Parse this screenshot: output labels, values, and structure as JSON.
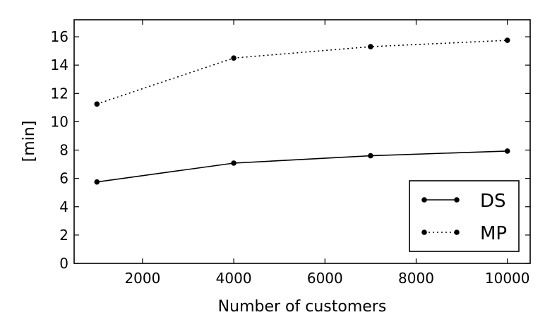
{
  "chart_data": {
    "type": "line",
    "xlabel": "Number of customers",
    "ylabel": "[min]",
    "xlim": [
      500,
      10500
    ],
    "ylim": [
      0,
      17.2
    ],
    "xticks": [
      2000,
      4000,
      6000,
      8000,
      10000
    ],
    "yticks": [
      0,
      2,
      4,
      6,
      8,
      10,
      12,
      14,
      16
    ],
    "grid": false,
    "legend_position": "lower-right",
    "x": [
      1000,
      4000,
      7000,
      10000
    ],
    "series": [
      {
        "name": "DS",
        "values": [
          5.75,
          7.08,
          7.6,
          7.93
        ],
        "line_style": "solid",
        "marker": "dot",
        "color": "#000000"
      },
      {
        "name": "MP",
        "values": [
          11.25,
          14.5,
          15.3,
          15.75
        ],
        "line_style": "dotted",
        "marker": "dot",
        "color": "#000000"
      }
    ]
  }
}
